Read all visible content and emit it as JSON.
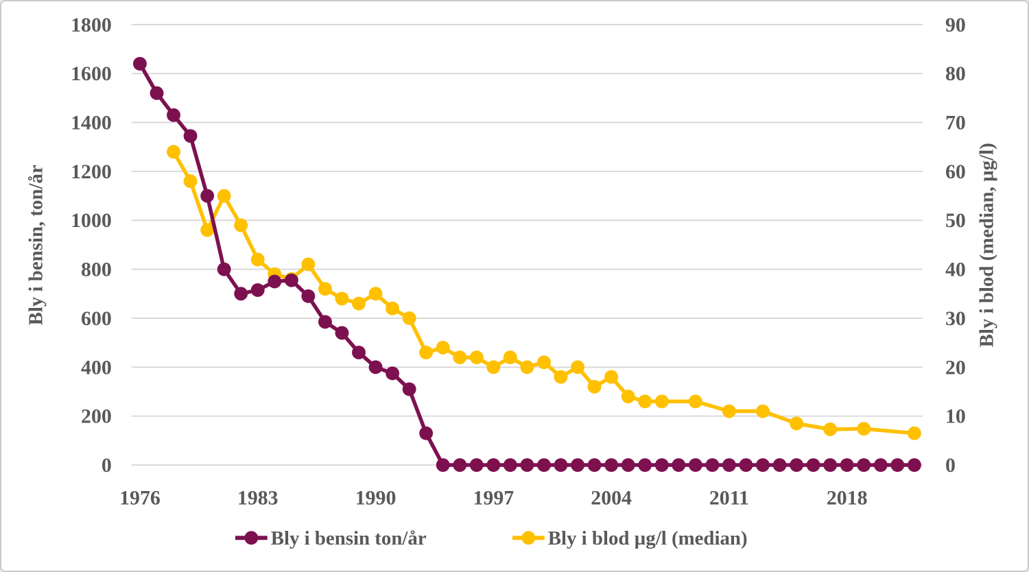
{
  "window": {
    "background": "#ffffff",
    "border_color": "#c9c9c9"
  },
  "chart_data": {
    "type": "line",
    "title": "",
    "x_axis": {
      "categories_start": 1976,
      "categories_end": 2022,
      "tick_labels": [
        "1976",
        "1983",
        "1990",
        "1997",
        "2004",
        "2011",
        "2018"
      ]
    },
    "left_axis": {
      "title": "Bly i bensin, ton/år",
      "min": 0,
      "max": 1800,
      "step": 200,
      "tick_labels": [
        "0",
        "200",
        "400",
        "600",
        "800",
        "1000",
        "1200",
        "1400",
        "1600",
        "1800"
      ]
    },
    "right_axis": {
      "title": "Bly i blod (median, µg/l)",
      "min": 0,
      "max": 90,
      "step": 10,
      "tick_labels": [
        "0",
        "10",
        "20",
        "30",
        "40",
        "50",
        "60",
        "70",
        "80",
        "90"
      ]
    },
    "grid": {
      "horizontal": true,
      "color": "#d9d9d9"
    },
    "text_color": "#595959",
    "legend_position": "bottom",
    "legend_order": [
      "bensin",
      "blod"
    ],
    "series": [
      {
        "key": "blod",
        "name": "Bly i blod µg/l (median)",
        "axis": "right_axis",
        "color": "#ffc000",
        "marker": "circle",
        "points": [
          [
            1978,
            64
          ],
          [
            1979,
            58
          ],
          [
            1980,
            48
          ],
          [
            1981,
            55
          ],
          [
            1982,
            49
          ],
          [
            1983,
            42
          ],
          [
            1984,
            39
          ],
          [
            1985,
            38
          ],
          [
            1986,
            41
          ],
          [
            1987,
            36
          ],
          [
            1988,
            34
          ],
          [
            1989,
            33
          ],
          [
            1990,
            35
          ],
          [
            1991,
            32
          ],
          [
            1992,
            30
          ],
          [
            1993,
            23
          ],
          [
            1994,
            24
          ],
          [
            1995,
            22
          ],
          [
            1996,
            22
          ],
          [
            1997,
            20
          ],
          [
            1998,
            22
          ],
          [
            1999,
            20
          ],
          [
            2000,
            21
          ],
          [
            2001,
            18
          ],
          [
            2002,
            20
          ],
          [
            2003,
            16
          ],
          [
            2004,
            18
          ],
          [
            2005,
            14
          ],
          [
            2006,
            13
          ],
          [
            2007,
            13
          ],
          [
            2009,
            13
          ],
          [
            2011,
            11
          ],
          [
            2013,
            11
          ],
          [
            2015,
            8.5
          ],
          [
            2017,
            7.3
          ],
          [
            2019,
            7.4
          ],
          [
            2022,
            6.5
          ]
        ]
      },
      {
        "key": "bensin",
        "name": "Bly i bensin ton/år",
        "axis": "left_axis",
        "color": "#7d1150",
        "marker": "circle",
        "points": [
          [
            1976,
            1640
          ],
          [
            1977,
            1520
          ],
          [
            1978,
            1430
          ],
          [
            1979,
            1345
          ],
          [
            1980,
            1100
          ],
          [
            1981,
            800
          ],
          [
            1982,
            700
          ],
          [
            1983,
            715
          ],
          [
            1984,
            750
          ],
          [
            1985,
            755
          ],
          [
            1986,
            690
          ],
          [
            1987,
            585
          ],
          [
            1988,
            540
          ],
          [
            1989,
            460
          ],
          [
            1990,
            400
          ],
          [
            1991,
            375
          ],
          [
            1992,
            310
          ],
          [
            1993,
            130
          ],
          [
            1994,
            0
          ],
          [
            1995,
            0
          ],
          [
            1996,
            0
          ],
          [
            1997,
            0
          ],
          [
            1998,
            0
          ],
          [
            1999,
            0
          ],
          [
            2000,
            0
          ],
          [
            2001,
            0
          ],
          [
            2002,
            0
          ],
          [
            2003,
            0
          ],
          [
            2004,
            0
          ],
          [
            2005,
            0
          ],
          [
            2006,
            0
          ],
          [
            2007,
            0
          ],
          [
            2008,
            0
          ],
          [
            2009,
            0
          ],
          [
            2010,
            0
          ],
          [
            2011,
            0
          ],
          [
            2012,
            0
          ],
          [
            2013,
            0
          ],
          [
            2014,
            0
          ],
          [
            2015,
            0
          ],
          [
            2016,
            0
          ],
          [
            2017,
            0
          ],
          [
            2018,
            0
          ],
          [
            2019,
            0
          ],
          [
            2020,
            0
          ],
          [
            2021,
            0
          ],
          [
            2022,
            0
          ]
        ]
      }
    ]
  }
}
